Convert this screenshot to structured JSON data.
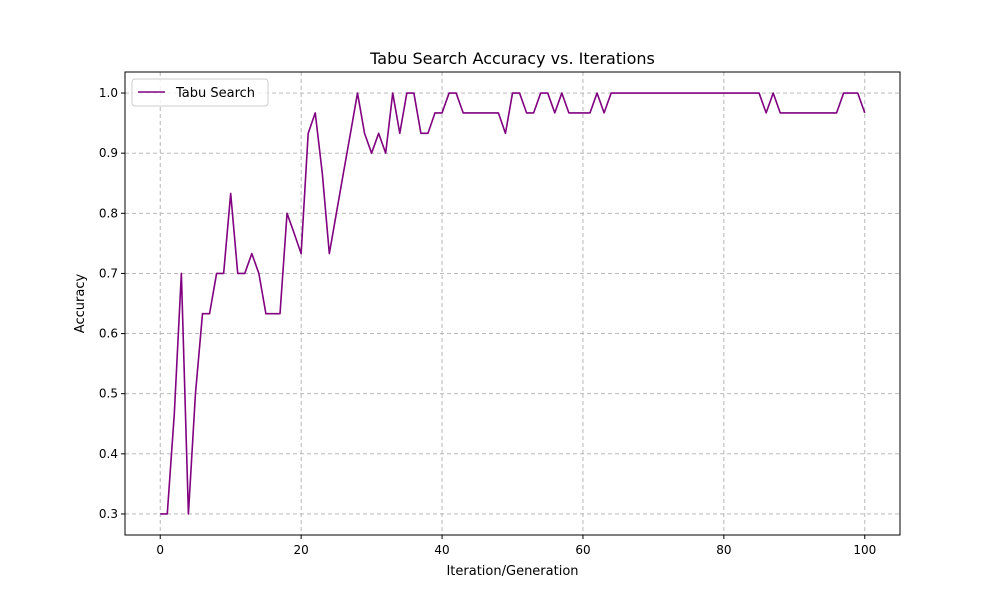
{
  "chart_data": {
    "type": "line",
    "title": "Tabu Search Accuracy vs. Iterations",
    "xlabel": "Iteration/Generation",
    "ylabel": "Accuracy",
    "xlim": [
      -5,
      105
    ],
    "ylim": [
      0.265,
      1.035
    ],
    "xticks": [
      0,
      20,
      40,
      60,
      80,
      100
    ],
    "yticks": [
      0.3,
      0.4,
      0.5,
      0.6,
      0.7,
      0.8,
      0.9,
      1.0
    ],
    "xtick_labels": [
      "0",
      "20",
      "40",
      "60",
      "80",
      "100"
    ],
    "ytick_labels": [
      "0.3",
      "0.4",
      "0.5",
      "0.6",
      "0.7",
      "0.8",
      "0.9",
      "1.0"
    ],
    "grid": true,
    "legend_position": "top-left",
    "series": [
      {
        "name": "Tabu Search",
        "color": "#800080",
        "x": [
          0,
          1,
          2,
          3,
          4,
          5,
          6,
          7,
          8,
          9,
          10,
          11,
          12,
          13,
          14,
          15,
          16,
          17,
          18,
          19,
          20,
          21,
          22,
          23,
          24,
          25,
          26,
          27,
          28,
          29,
          30,
          31,
          32,
          33,
          34,
          35,
          36,
          37,
          38,
          39,
          40,
          41,
          42,
          43,
          44,
          45,
          46,
          47,
          48,
          49,
          50,
          51,
          52,
          53,
          54,
          55,
          56,
          57,
          58,
          59,
          60,
          61,
          62,
          63,
          64,
          65,
          66,
          67,
          68,
          69,
          70,
          71,
          72,
          73,
          74,
          75,
          76,
          77,
          78,
          79,
          80,
          81,
          82,
          83,
          84,
          85,
          86,
          87,
          88,
          89,
          90,
          91,
          92,
          93,
          94,
          95,
          96,
          97,
          98,
          99,
          100
        ],
        "y": [
          0.3,
          0.3,
          0.467,
          0.7,
          0.3,
          0.5,
          0.633,
          0.633,
          0.7,
          0.7,
          0.833,
          0.7,
          0.7,
          0.733,
          0.7,
          0.633,
          0.633,
          0.633,
          0.8,
          0.767,
          0.733,
          0.933,
          0.967,
          0.867,
          0.733,
          0.8,
          0.867,
          0.933,
          1.0,
          0.933,
          0.9,
          0.933,
          0.9,
          1.0,
          0.933,
          1.0,
          1.0,
          0.933,
          0.933,
          0.967,
          0.967,
          1.0,
          1.0,
          0.967,
          0.967,
          0.967,
          0.967,
          0.967,
          0.967,
          0.933,
          1.0,
          1.0,
          0.967,
          0.967,
          1.0,
          1.0,
          0.967,
          1.0,
          0.967,
          0.967,
          0.967,
          0.967,
          1.0,
          0.967,
          1.0,
          1.0,
          1.0,
          1.0,
          1.0,
          1.0,
          1.0,
          1.0,
          1.0,
          1.0,
          1.0,
          1.0,
          1.0,
          1.0,
          1.0,
          1.0,
          1.0,
          1.0,
          1.0,
          1.0,
          1.0,
          1.0,
          0.967,
          1.0,
          0.967,
          0.967,
          0.967,
          0.967,
          0.967,
          0.967,
          0.967,
          0.967,
          0.967,
          1.0,
          1.0,
          1.0,
          0.967
        ]
      }
    ]
  }
}
